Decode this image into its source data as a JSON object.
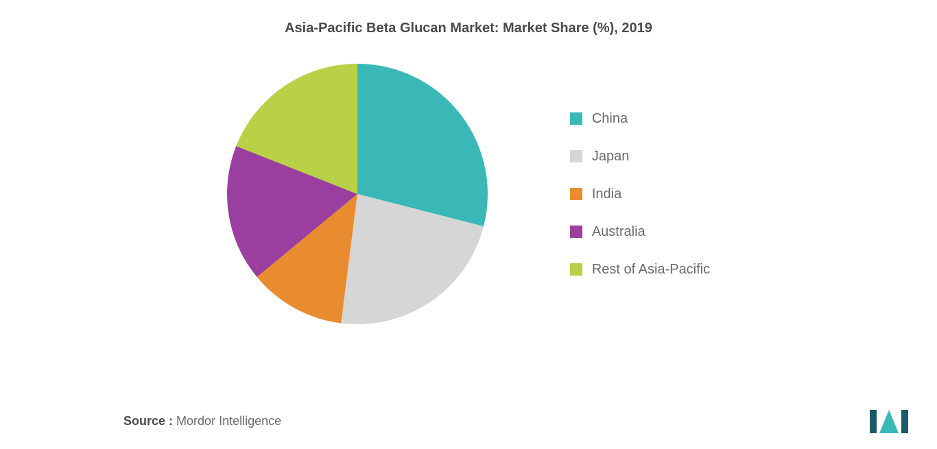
{
  "chart": {
    "type": "pie",
    "title": "Asia-Pacific Beta Glucan Market: Market Share (%), 2019",
    "title_fontsize": 20,
    "title_color": "#4a4a4a",
    "background_color": "#ffffff",
    "pie_radius": 190,
    "start_angle_deg": -90,
    "slices": [
      {
        "label": "China",
        "value": 29,
        "color": "#3ab8b8"
      },
      {
        "label": "Japan",
        "value": 23,
        "color": "#d6d6d6"
      },
      {
        "label": "India",
        "value": 12,
        "color": "#e88c2f"
      },
      {
        "label": "Australia",
        "value": 17,
        "color": "#9a3fa0"
      },
      {
        "label": "Rest of Asia-Pacific",
        "value": 19,
        "color": "#b8d146"
      }
    ],
    "legend": {
      "position": "right",
      "fontsize": 20,
      "label_color": "#6a6a6a",
      "swatch_size": 18,
      "gap": 32
    }
  },
  "source": {
    "label": "Source :",
    "value": "Mordor Intelligence",
    "fontsize": 18,
    "label_color": "#4a4a4a",
    "value_color": "#6a6a6a"
  },
  "logo": {
    "name": "mordor-logo",
    "bar_color": "#1a5a6a",
    "triangle_color": "#3ab8b8"
  }
}
